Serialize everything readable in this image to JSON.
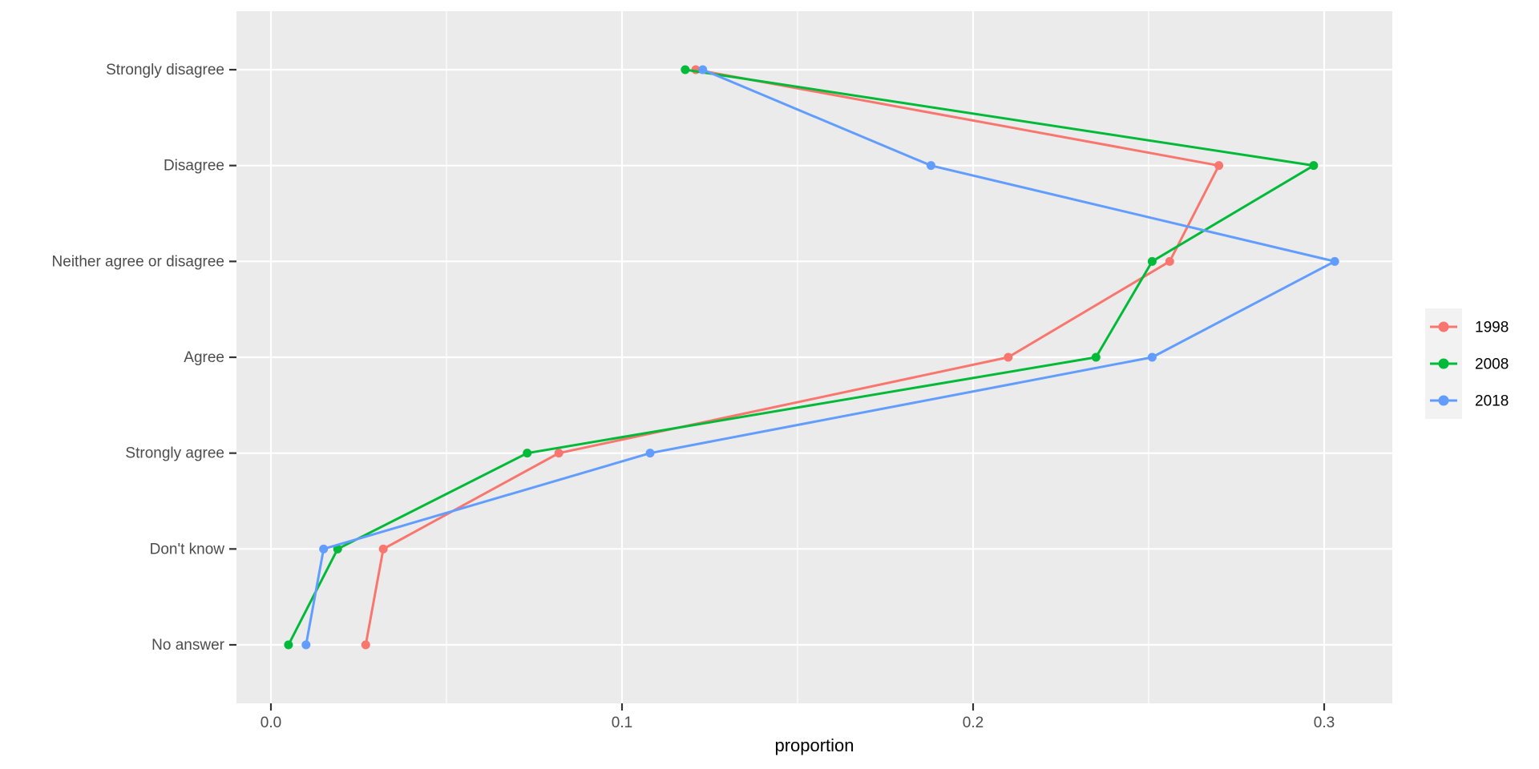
{
  "chart_data": {
    "type": "line",
    "title": "",
    "xlabel": "proportion",
    "ylabel": "",
    "categories": [
      "Strongly disagree",
      "Disagree",
      "Neither agree or disagree",
      "Agree",
      "Strongly agree",
      "Don't know",
      "No answer"
    ],
    "series": [
      {
        "name": "1998",
        "color": "#F8766D",
        "values": [
          0.121,
          0.27,
          0.256,
          0.21,
          0.082,
          0.032,
          0.027
        ]
      },
      {
        "name": "2008",
        "color": "#00BA38",
        "values": [
          0.118,
          0.297,
          0.251,
          0.235,
          0.073,
          0.019,
          0.005
        ]
      },
      {
        "name": "2018",
        "color": "#619CFF",
        "values": [
          0.123,
          0.188,
          0.303,
          0.251,
          0.108,
          0.015,
          0.01
        ]
      }
    ],
    "x_ticks": [
      0.0,
      0.1,
      0.2,
      0.3
    ],
    "x_tick_labels": [
      "0.0",
      "0.1",
      "0.2",
      "0.3"
    ],
    "x_minor_ticks": [
      0.05,
      0.15,
      0.25
    ],
    "xlim": [
      -0.0101,
      0.3194
    ],
    "legend_position": "right",
    "legend_entries": [
      "1998",
      "2008",
      "2018"
    ],
    "grid": "white major gridlines (x and y-category) plus white minor x gridlines, no minor y gridlines",
    "colors": {
      "panel_background": "#EBEBEB",
      "gridline": "#FFFFFF",
      "axis_text": "#4D4D4D",
      "axis_title": "#000000",
      "tick_mark": "#333333",
      "legend_key_background": "#F2F2F2",
      "legend_text": "#000000"
    }
  }
}
